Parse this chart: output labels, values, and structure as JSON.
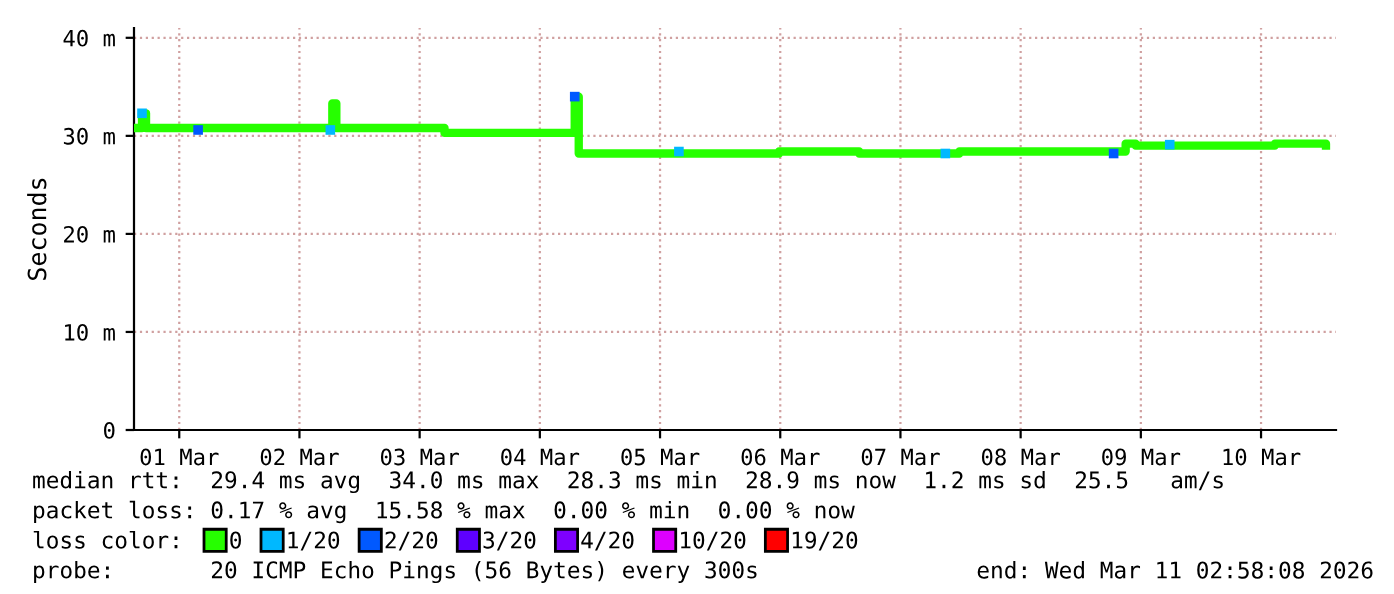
{
  "chart_data": {
    "type": "step",
    "ylabel": "Seconds",
    "xlim": [
      "2026-03-01T02:58",
      "2026-03-11T02:58"
    ],
    "xticks": [
      {
        "value": "2026-03-01T12:00",
        "label": "01 Mar"
      },
      {
        "value": "2026-03-02T12:00",
        "label": "02 Mar"
      },
      {
        "value": "2026-03-03T12:00",
        "label": "03 Mar"
      },
      {
        "value": "2026-03-04T12:00",
        "label": "04 Mar"
      },
      {
        "value": "2026-03-05T12:00",
        "label": "05 Mar"
      },
      {
        "value": "2026-03-06T12:00",
        "label": "06 Mar"
      },
      {
        "value": "2026-03-07T12:00",
        "label": "07 Mar"
      },
      {
        "value": "2026-03-08T12:00",
        "label": "08 Mar"
      },
      {
        "value": "2026-03-09T12:00",
        "label": "09 Mar"
      },
      {
        "value": "2026-03-10T12:00",
        "label": "10 Mar"
      }
    ],
    "ylim": [
      0,
      41
    ],
    "yticks": [
      0,
      {
        "value": 10,
        "label": "10 m"
      },
      {
        "value": 20,
        "label": "20 m"
      },
      {
        "value": 30,
        "label": "30 m"
      },
      {
        "value": 40,
        "label": "40 m"
      }
    ],
    "grid": true,
    "legend": "bottom",
    "legend_title": "loss color:",
    "series": [
      {
        "name": "0",
        "color": "#26ff00",
        "x": [
          "2026-03-01T02:58",
          "2026-03-01T04:34",
          "2026-03-01T05:22",
          "2026-03-02T03:46",
          "2026-03-02T18:10",
          "2026-03-02T18:34",
          "2026-03-02T19:22",
          "2026-03-03T16:34",
          "2026-03-03T16:58",
          "2026-03-04T18:34",
          "2026-03-04T18:58",
          "2026-03-04T19:46",
          "2026-03-05T15:46",
          "2026-03-06T11:46",
          "2026-03-07T03:46",
          "2026-03-07T23:46",
          "2026-03-09T07:46",
          "2026-03-09T08:58",
          "2026-03-09T10:58",
          "2026-03-10T14:46",
          "2026-03-11T00:58"
        ],
        "values": [
          30.8,
          32.3,
          30.8,
          30.8,
          30.8,
          33.3,
          30.8,
          30.8,
          30.3,
          30.3,
          34.0,
          28.2,
          28.2,
          28.4,
          28.2,
          28.4,
          28.4,
          29.2,
          29.0,
          29.2,
          29.0
        ]
      },
      {
        "name": "1/20",
        "color": "#00b8ff",
        "type": "scatter",
        "marker": "square",
        "x": [
          "2026-03-01T04:34",
          "2026-03-02T18:10",
          "2026-03-05T15:46",
          "2026-03-07T20:58",
          "2026-03-09T17:46"
        ],
        "values": [
          32.3,
          30.6,
          28.4,
          28.2,
          29.1
        ]
      },
      {
        "name": "2/20",
        "color": "#0059ff",
        "type": "scatter",
        "marker": "square",
        "x": [
          "2026-03-01T15:46",
          "2026-03-04T18:58",
          "2026-03-09T06:34"
        ],
        "values": [
          30.6,
          34.0,
          28.2
        ]
      },
      {
        "name": "3/20",
        "color": "#5e00ff",
        "type": "scatter",
        "marker": "square"
      },
      {
        "name": "4/20",
        "color": "#7e00ff",
        "type": "scatter",
        "marker": "square"
      },
      {
        "name": "10/20",
        "color": "#dd00ff",
        "type": "scatter",
        "marker": "square"
      },
      {
        "name": "19/20",
        "color": "#ff0000",
        "type": "scatter",
        "marker": "square"
      }
    ],
    "annotations": [
      "median rtt:  29.4 ms avg  34.0 ms max  28.3 ms min  28.9 ms now  1.2 ms sd  25.5   am/s",
      "packet loss: 0.17 % avg  15.58 % max  0.00 % min  0.00 % now",
      "probe:       20 ICMP Echo Pings (56 Bytes) every 300s",
      "end: Wed Mar 11 02:58:08 2026"
    ]
  }
}
